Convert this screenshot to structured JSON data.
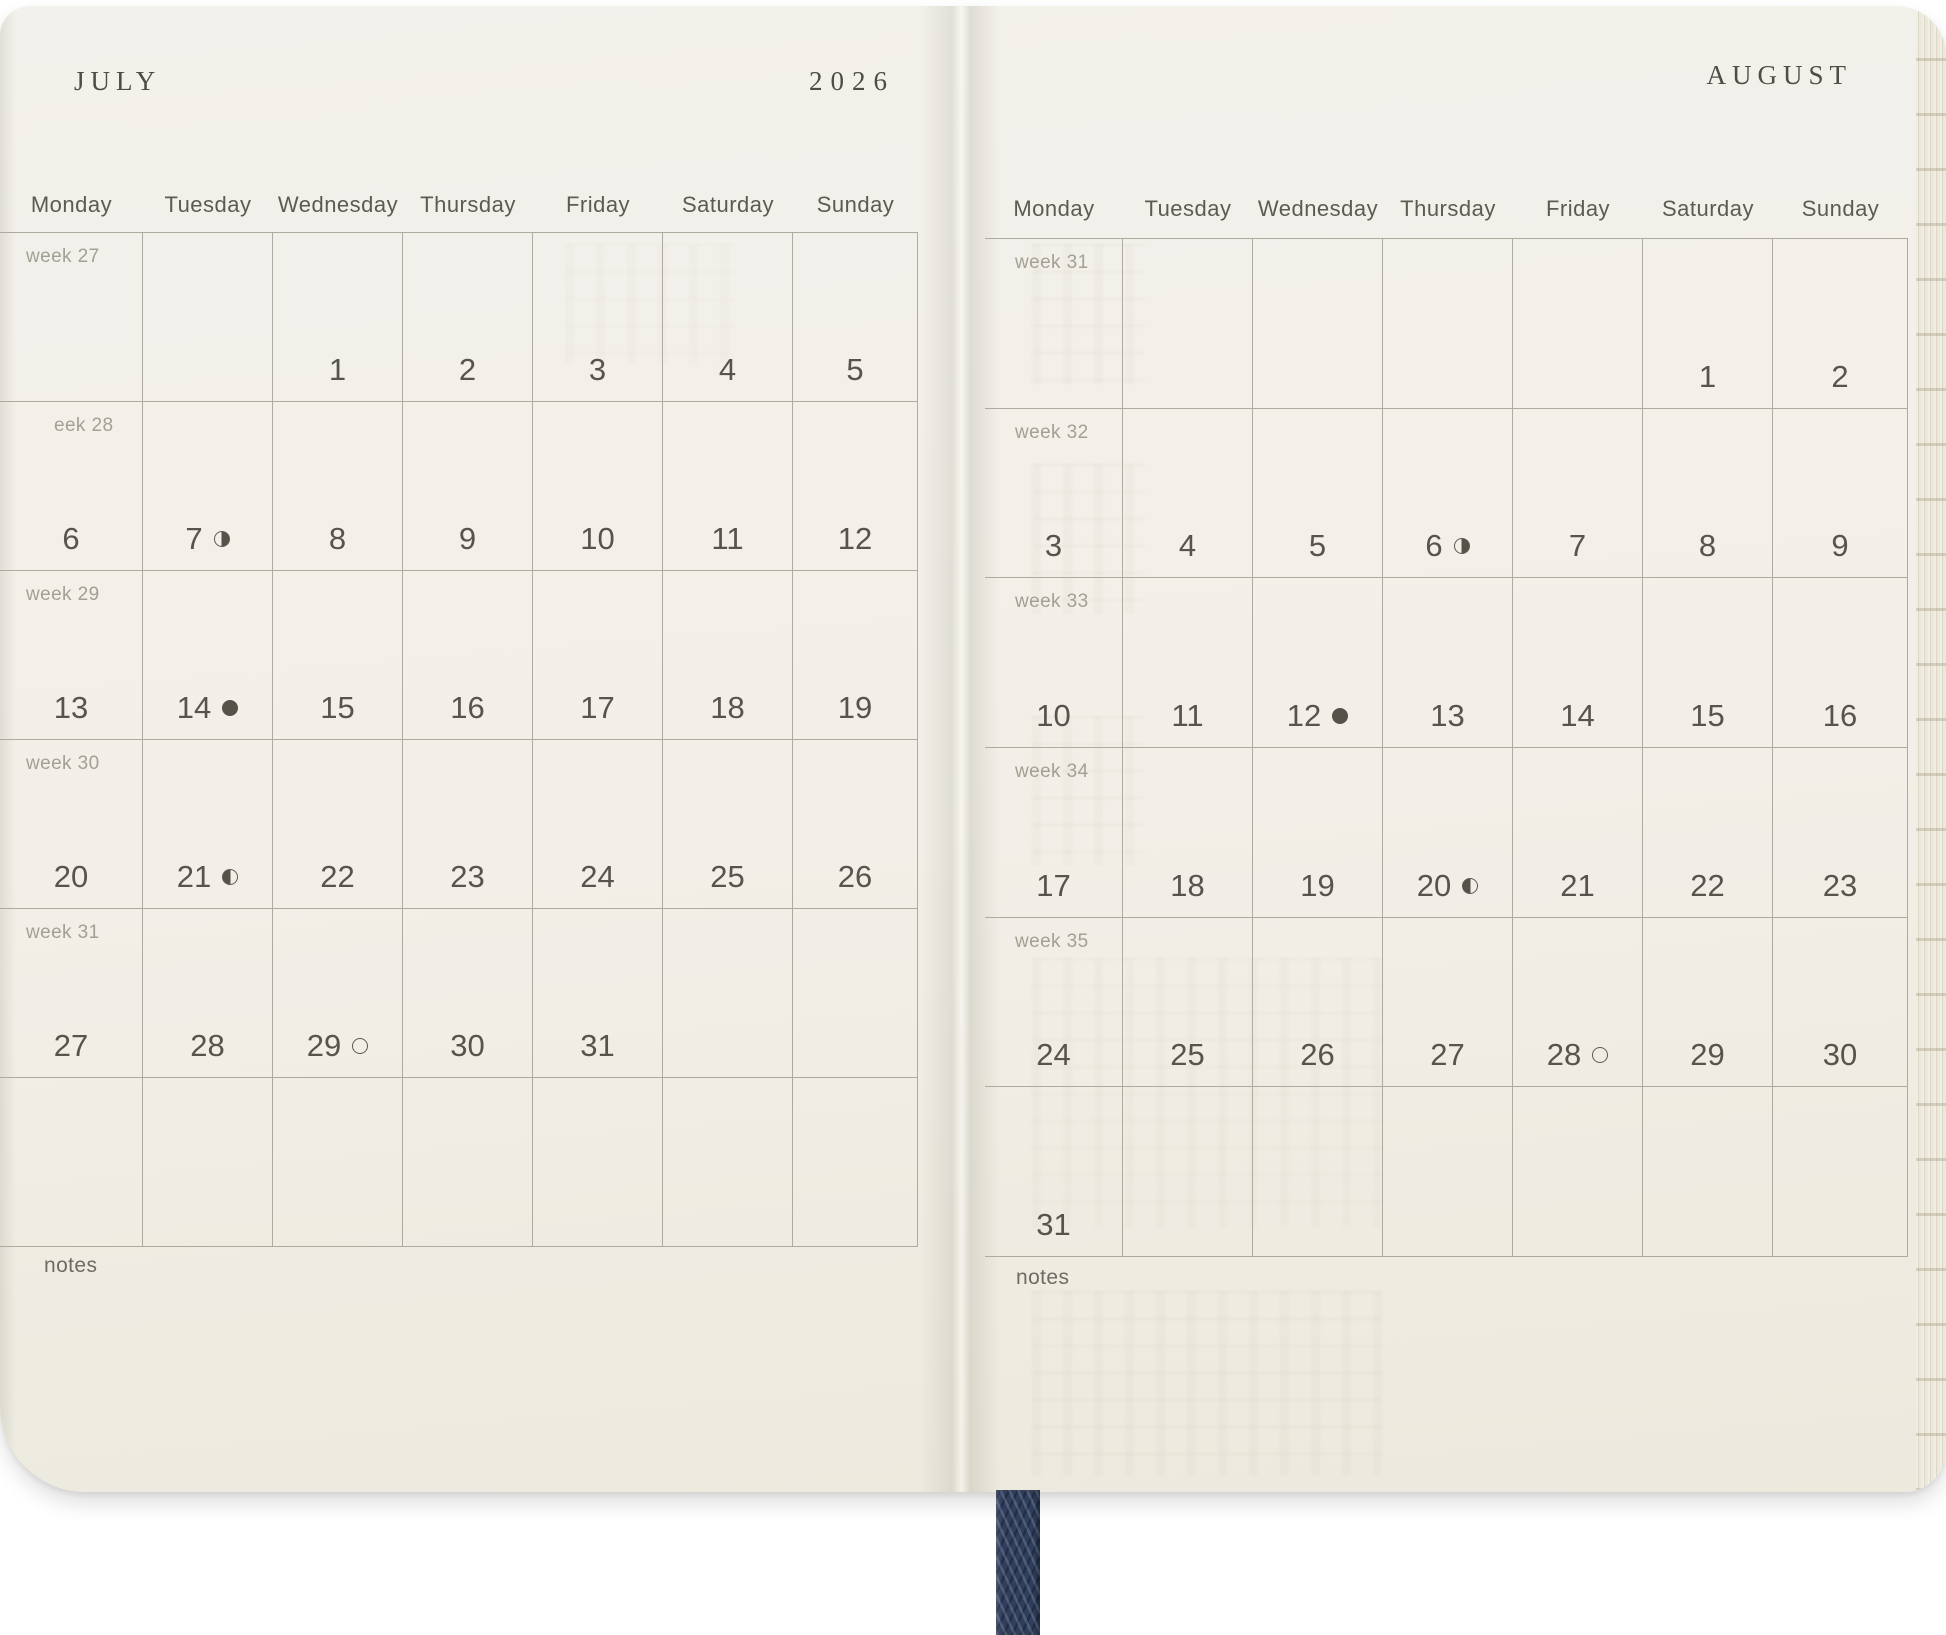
{
  "spread": {
    "left_page": {
      "month_title": "JULY",
      "year_title": "2026",
      "day_headers": [
        "Monday",
        "Tuesday",
        "Wednesday",
        "Thursday",
        "Friday",
        "Saturday",
        "Sunday"
      ],
      "weeks": [
        {
          "label": "week 27",
          "days": [
            "",
            "",
            "1",
            "2",
            "3",
            "4",
            "5"
          ],
          "moons": [
            "",
            "",
            "",
            "",
            "",
            "",
            ""
          ]
        },
        {
          "label": "eek 28",
          "days": [
            "6",
            "7",
            "8",
            "9",
            "10",
            "11",
            "12"
          ],
          "moons": [
            "",
            "last-quarter",
            "",
            "",
            "",
            "",
            ""
          ]
        },
        {
          "label": "week 29",
          "days": [
            "13",
            "14",
            "15",
            "16",
            "17",
            "18",
            "19"
          ],
          "moons": [
            "",
            "new-moon",
            "",
            "",
            "",
            "",
            ""
          ]
        },
        {
          "label": "week 30",
          "days": [
            "20",
            "21",
            "22",
            "23",
            "24",
            "25",
            "26"
          ],
          "moons": [
            "",
            "first-quarter",
            "",
            "",
            "",
            "",
            ""
          ]
        },
        {
          "label": "week 31",
          "days": [
            "27",
            "28",
            "29",
            "30",
            "31",
            "",
            ""
          ],
          "moons": [
            "",
            "",
            "full-moon",
            "",
            "",
            "",
            ""
          ]
        },
        {
          "label": "",
          "days": [
            "",
            "",
            "",
            "",
            "",
            "",
            ""
          ],
          "moons": [
            "",
            "",
            "",
            "",
            "",
            "",
            ""
          ]
        }
      ],
      "notes_label": "notes"
    },
    "right_page": {
      "month_title": "AUGUST",
      "day_headers": [
        "Monday",
        "Tuesday",
        "Wednesday",
        "Thursday",
        "Friday",
        "Saturday",
        "Sunday"
      ],
      "weeks": [
        {
          "label": "week 31",
          "days": [
            "",
            "",
            "",
            "",
            "",
            "1",
            "2"
          ],
          "moons": [
            "",
            "",
            "",
            "",
            "",
            "",
            ""
          ]
        },
        {
          "label": "week 32",
          "days": [
            "3",
            "4",
            "5",
            "6",
            "7",
            "8",
            "9"
          ],
          "moons": [
            "",
            "",
            "",
            "last-quarter",
            "",
            "",
            ""
          ]
        },
        {
          "label": "week 33",
          "days": [
            "10",
            "11",
            "12",
            "13",
            "14",
            "15",
            "16"
          ],
          "moons": [
            "",
            "",
            "new-moon",
            "",
            "",
            "",
            ""
          ]
        },
        {
          "label": "week 34",
          "days": [
            "17",
            "18",
            "19",
            "20",
            "21",
            "22",
            "23"
          ],
          "moons": [
            "",
            "",
            "",
            "first-quarter",
            "",
            "",
            ""
          ]
        },
        {
          "label": "week 35",
          "days": [
            "24",
            "25",
            "26",
            "27",
            "28",
            "29",
            "30"
          ],
          "moons": [
            "",
            "",
            "",
            "",
            "full-moon",
            "",
            ""
          ]
        },
        {
          "label": "",
          "days": [
            "31",
            "",
            "",
            "",
            "",
            "",
            ""
          ],
          "moons": [
            "",
            "",
            "",
            "",
            "",
            "",
            ""
          ]
        }
      ],
      "notes_label": "notes"
    }
  },
  "colors": {
    "page": "#f1efe7",
    "background": "#ffffff",
    "grid_line": "#aeab9e",
    "date_text": "#57544d",
    "day_header_text": "#5d5a51",
    "week_label_text": "#a39f93",
    "title_text": "#4f4c46",
    "notes_text": "#6e6b62",
    "ribbon": "#2f3e5d"
  }
}
